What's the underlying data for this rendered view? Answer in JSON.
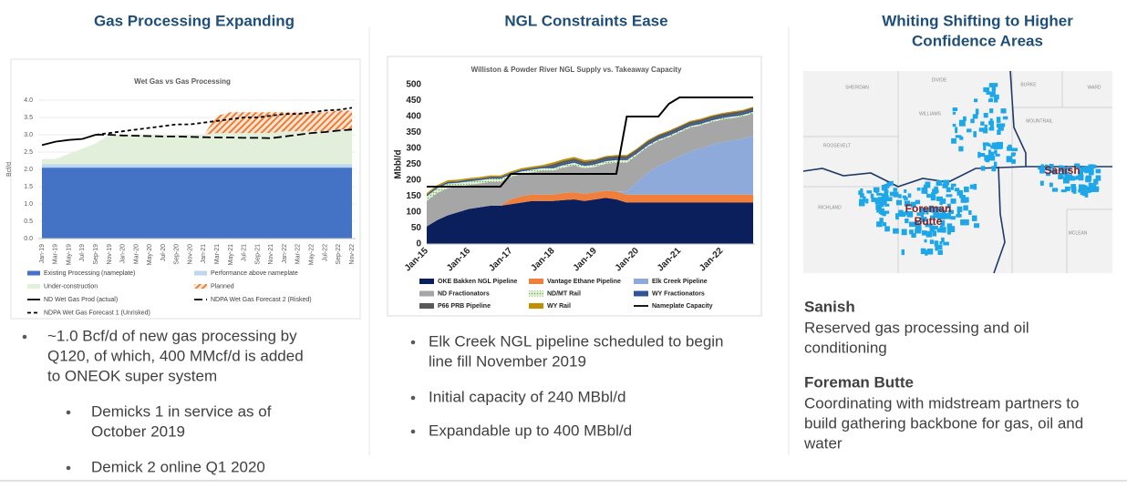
{
  "left": {
    "heading": "Gas Processing Expanding",
    "bullets": [
      [
        "~1.0 Bcf/d of new gas processing by",
        "Q120, of which, 400 MMcf/d is added",
        "to ONEOK super system"
      ]
    ],
    "sub_bullets": [
      [
        "Demicks 1 in service as of",
        "October 2019"
      ],
      [
        "Demick 2 online Q1 2020"
      ]
    ]
  },
  "middle": {
    "heading": "NGL Constraints Ease",
    "bullets": [
      [
        "Elk Creek NGL pipeline scheduled to begin",
        "line fill November 2019"
      ],
      [
        "Initial capacity of 240 MBbl/d"
      ],
      [
        "Expandable up to 400 MBbl/d"
      ]
    ]
  },
  "right": {
    "heading": [
      "Whiting Shifting to Higher",
      "Confidence Areas"
    ],
    "counties": [
      "SHERIDAN",
      "DIVIDE",
      "BURKE",
      "WARD",
      "WILLIAMS",
      "MOUNTRAIL",
      "ROOSEVELT",
      "RICHLAND",
      "MCLEAN"
    ],
    "map_areas": [
      [
        "Sanish"
      ],
      [
        "Foreman",
        "Butte"
      ]
    ],
    "areas": [
      {
        "name": "Sanish",
        "lines": [
          "Reserved gas processing and oil",
          "conditioning"
        ]
      },
      {
        "name": "Foreman Butte",
        "lines": [
          "Coordinating with midstream partners to",
          "build gathering backbone for gas, oil and",
          "water"
        ]
      }
    ]
  },
  "chart_data": [
    {
      "type": "area",
      "title": "Wet Gas vs Gas Processing",
      "y_label": "Bcf/d",
      "grid": true,
      "categories": [
        "Jan-19",
        "Mar-19",
        "May-19",
        "Jul-19",
        "Sep-19",
        "Nov-19",
        "Jan-20",
        "Mar-20",
        "May-20",
        "Jul-20",
        "Sep-20",
        "Nov-20",
        "Jan-21",
        "Mar-21",
        "May-21",
        "Jul-21",
        "Sep-21",
        "Nov-21",
        "Jan-22",
        "Mar-22",
        "May-22",
        "Jul-22",
        "Sep-22",
        "Nov-22"
      ],
      "ylim": [
        0,
        4
      ],
      "yticks": [
        {
          "value": 0,
          "label": "0.0"
        },
        0.5,
        {
          "value": 1,
          "label": "1.0"
        },
        1.5,
        {
          "value": 2,
          "label": "2.0"
        },
        2.5,
        {
          "value": 3,
          "label": "3.0"
        },
        3.5,
        {
          "value": 4,
          "label": "4.0"
        }
      ],
      "series": [
        {
          "name": "Existing Processing (nameplate)",
          "kind": "stack",
          "color": "#4472c4",
          "values": [
            2.05,
            2.05,
            2.05,
            2.05,
            2.05,
            2.05,
            2.05,
            2.05,
            2.05,
            2.05,
            2.05,
            2.05,
            2.05,
            2.05,
            2.05,
            2.05,
            2.05,
            2.05,
            2.05,
            2.05,
            2.05,
            2.05,
            2.05,
            2.05
          ]
        },
        {
          "name": "Performance above nameplate",
          "kind": "stack",
          "color": "#bdd7ee",
          "values": [
            0.1,
            0.1,
            0.1,
            0.1,
            0.1,
            0.1,
            0.1,
            0.1,
            0.1,
            0.1,
            0.1,
            0.1,
            0.1,
            0.1,
            0.1,
            0.1,
            0.1,
            0.1,
            0.1,
            0.1,
            0.1,
            0.1,
            0.1,
            0.1
          ]
        },
        {
          "name": "Under-construction",
          "kind": "stack",
          "color": "#e2efda",
          "values": [
            0.15,
            0.15,
            0.3,
            0.45,
            0.6,
            0.85,
            0.85,
            0.85,
            0.85,
            0.85,
            0.85,
            0.85,
            0.85,
            0.9,
            0.9,
            0.9,
            0.9,
            0.9,
            0.95,
            0.95,
            0.95,
            0.95,
            1.0,
            1.0
          ]
        },
        {
          "name": "Planned",
          "kind": "stack",
          "color": "#ed7d31",
          "pattern": "hatch",
          "values": [
            0,
            0,
            0,
            0,
            0,
            0,
            0,
            0,
            0,
            0,
            0,
            0,
            0,
            0.5,
            0.6,
            0.6,
            0.6,
            0.6,
            0.55,
            0.55,
            0.55,
            0.55,
            0.55,
            0.55
          ]
        },
        {
          "name": "ND Wet Gas Prod (actual)",
          "kind": "line",
          "color": "#000000",
          "dash": "solid",
          "values": [
            2.7,
            2.8,
            2.85,
            2.88,
            3.0,
            null,
            null,
            null,
            null,
            null,
            null,
            null,
            null,
            null,
            null,
            null,
            null,
            null,
            null,
            null,
            null,
            null,
            null,
            null
          ]
        },
        {
          "name": "NDPA Wet Gas Forecast 2 (Risked)",
          "kind": "line",
          "color": "#000000",
          "dash": "long",
          "values": [
            null,
            null,
            null,
            null,
            3.0,
            3.0,
            2.98,
            2.97,
            2.96,
            2.95,
            2.95,
            2.94,
            2.93,
            2.92,
            2.92,
            2.91,
            2.91,
            2.9,
            2.95,
            3.0,
            3.05,
            3.08,
            3.12,
            3.15
          ]
        },
        {
          "name": "NDPA Wet Gas Forecast 1 (Unrisked)",
          "kind": "line",
          "color": "#000000",
          "dash": "short",
          "values": [
            null,
            null,
            null,
            null,
            3.0,
            3.05,
            3.1,
            3.15,
            3.2,
            3.25,
            3.3,
            3.3,
            3.35,
            3.4,
            3.45,
            3.5,
            3.5,
            3.55,
            3.6,
            3.6,
            3.65,
            3.7,
            3.72,
            3.78
          ]
        }
      ]
    },
    {
      "type": "area",
      "title": "Williston & Powder River NGL Supply vs. Takeaway Capacity",
      "y_label": "Mbbl/d",
      "grid": false,
      "categories": [
        "Jan-15",
        null,
        null,
        null,
        "Jan-16",
        null,
        null,
        null,
        "Jan-17",
        null,
        null,
        null,
        "Jan-18",
        null,
        null,
        null,
        "Jan-19",
        null,
        null,
        null,
        "Jan-20",
        null,
        null,
        null,
        "Jan-21",
        null,
        null,
        null,
        "Jan-22",
        null,
        null,
        null
      ],
      "ylim": [
        0,
        500
      ],
      "yticks": [
        0,
        50,
        100,
        150,
        200,
        250,
        300,
        350,
        400,
        450,
        500
      ],
      "series": [
        {
          "name": "OKE Bakken NGL Pipeline",
          "kind": "stack",
          "color": "#0b1f5c",
          "values": [
            55,
            75,
            90,
            100,
            110,
            115,
            120,
            120,
            125,
            130,
            135,
            135,
            135,
            138,
            140,
            135,
            140,
            145,
            140,
            130,
            130,
            130,
            130,
            130,
            130,
            130,
            130,
            130,
            130,
            130,
            130,
            130
          ]
        },
        {
          "name": "Vantage Ethane Pipeline",
          "kind": "stack",
          "color": "#f07f3c",
          "values": [
            0,
            0,
            0,
            0,
            0,
            0,
            0,
            0,
            15,
            20,
            20,
            20,
            20,
            22,
            22,
            22,
            22,
            22,
            25,
            25,
            25,
            25,
            25,
            25,
            25,
            25,
            25,
            25,
            25,
            25,
            25,
            25
          ]
        },
        {
          "name": "Elk Creek Pipeline",
          "kind": "stack",
          "color": "#8eaadb",
          "values": [
            0,
            0,
            0,
            0,
            0,
            0,
            0,
            0,
            0,
            0,
            0,
            0,
            0,
            0,
            0,
            0,
            0,
            0,
            0,
            10,
            40,
            70,
            90,
            105,
            120,
            135,
            145,
            155,
            165,
            170,
            175,
            185
          ]
        },
        {
          "name": "ND Fractionators",
          "kind": "stack",
          "color": "#a6a6a6",
          "values": [
            80,
            85,
            85,
            80,
            75,
            75,
            75,
            75,
            70,
            70,
            70,
            75,
            75,
            80,
            85,
            80,
            80,
            85,
            90,
            90,
            85,
            80,
            78,
            75,
            75,
            75,
            72,
            72,
            70,
            70,
            70,
            70
          ]
        },
        {
          "name": "ND/MT Rail",
          "kind": "stack",
          "color": "#70ad47",
          "pattern": "dots",
          "values": [
            15,
            15,
            15,
            12,
            12,
            10,
            10,
            10,
            8,
            8,
            8,
            8,
            8,
            8,
            8,
            8,
            8,
            8,
            8,
            8,
            5,
            5,
            5,
            5,
            5,
            5,
            5,
            5,
            5,
            5,
            5,
            5
          ]
        },
        {
          "name": "WY Fractionators",
          "kind": "stack",
          "color": "#2f5597",
          "values": [
            5,
            5,
            5,
            5,
            5,
            5,
            5,
            5,
            5,
            5,
            5,
            5,
            5,
            5,
            5,
            5,
            5,
            5,
            5,
            5,
            5,
            5,
            5,
            5,
            5,
            5,
            5,
            5,
            5,
            5,
            5,
            5
          ]
        },
        {
          "name": "P66 PRB Pipeline",
          "kind": "stack",
          "color": "#595959",
          "values": [
            0,
            0,
            0,
            0,
            0,
            0,
            0,
            0,
            0,
            0,
            0,
            0,
            8,
            8,
            8,
            8,
            8,
            8,
            8,
            8,
            8,
            8,
            8,
            8,
            8,
            8,
            8,
            8,
            8,
            8,
            8,
            8
          ]
        },
        {
          "name": "WY Rail",
          "kind": "stack",
          "color": "#bf9000",
          "values": [
            5,
            5,
            5,
            5,
            5,
            5,
            5,
            5,
            5,
            5,
            5,
            5,
            5,
            5,
            5,
            5,
            3,
            3,
            3,
            3,
            3,
            3,
            3,
            3,
            3,
            3,
            3,
            3,
            3,
            3,
            3,
            3
          ]
        },
        {
          "name": "Nameplate Capacity",
          "kind": "line",
          "color": "#000000",
          "dash": "solid",
          "values": [
            180,
            180,
            180,
            180,
            180,
            180,
            180,
            180,
            220,
            220,
            220,
            220,
            220,
            220,
            220,
            220,
            220,
            220,
            220,
            400,
            400,
            400,
            400,
            440,
            460,
            460,
            460,
            460,
            460,
            460,
            460,
            460
          ]
        }
      ]
    }
  ]
}
